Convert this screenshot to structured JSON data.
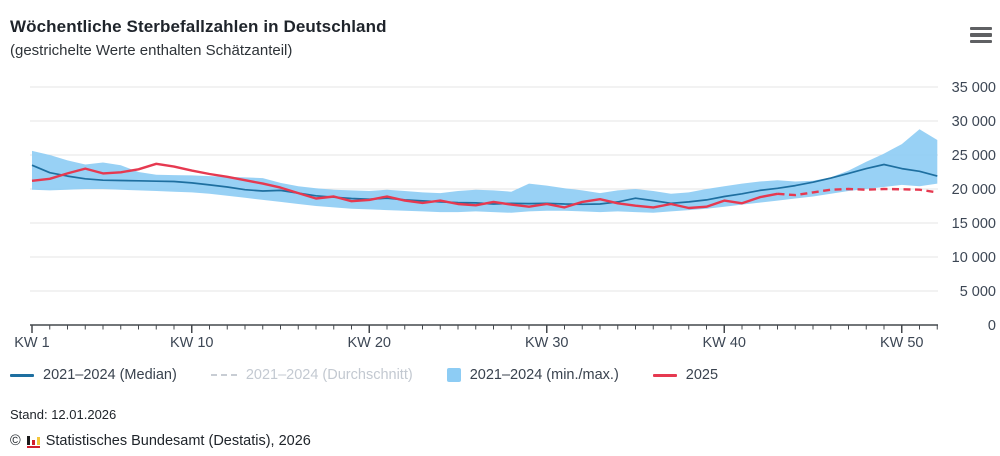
{
  "header": {
    "title": "Wöchentliche Sterbefallzahlen in Deutschland",
    "subtitle": "(gestrichelte Werte enthalten Schätzanteil)",
    "menu_icon": "hamburger-icon"
  },
  "chart_data": {
    "type": "line",
    "title": "Wöchentliche Sterbefallzahlen in Deutschland",
    "subtitle": "(gestrichelte Werte enthalten Schätzanteil)",
    "x_unit": "Kalenderwoche",
    "week_count": 52,
    "x_major_ticks": [
      {
        "week": 1,
        "label": "KW 1"
      },
      {
        "week": 10,
        "label": "KW 10"
      },
      {
        "week": 20,
        "label": "KW 20"
      },
      {
        "week": 30,
        "label": "KW 30"
      },
      {
        "week": 40,
        "label": "KW 40"
      },
      {
        "week": 50,
        "label": "KW 50"
      }
    ],
    "ylim": [
      0,
      35000
    ],
    "y_ticks": [
      0,
      5000,
      10000,
      15000,
      20000,
      25000,
      30000,
      35000
    ],
    "y_tick_labels": [
      "0",
      "5 000",
      "10 000",
      "15 000",
      "20 000",
      "25 000",
      "30 000",
      "35 000"
    ],
    "grid": true,
    "legend_position": "bottom",
    "colors": {
      "median": "#1e6fa0",
      "average_disabled": "#c8cdd4",
      "band": "#8dccf4",
      "y2025": "#e63950",
      "axis": "#44484d",
      "gridline": "#e4e4e4"
    },
    "series": [
      {
        "name": "2021–2024 (Median)",
        "type": "line",
        "color": "#1e6fa0",
        "values": [
          23500,
          22400,
          21900,
          21500,
          21300,
          21250,
          21200,
          21150,
          21100,
          20900,
          20600,
          20300,
          19900,
          19700,
          19800,
          19400,
          19000,
          18800,
          18600,
          18500,
          18650,
          18400,
          18250,
          18100,
          18000,
          17950,
          17800,
          17900,
          17850,
          17900,
          17800,
          17750,
          17800,
          18100,
          18650,
          18300,
          17900,
          18100,
          18400,
          18900,
          19300,
          19800,
          20100,
          20500,
          21000,
          21600,
          22300,
          23000,
          23600,
          23000,
          22600,
          21900
        ]
      },
      {
        "name": "2021–2024 (Durchschnitt)",
        "type": "line",
        "style": "dashed",
        "color": "#c8cdd4",
        "visible": false,
        "values": null
      },
      {
        "name": "2021–2024 (min./max.)",
        "type": "band",
        "color": "#8dccf4",
        "max": [
          25600,
          25000,
          24200,
          23600,
          23900,
          23500,
          22500,
          22100,
          22050,
          22000,
          21900,
          21800,
          21700,
          21600,
          20900,
          20400,
          20100,
          19900,
          19800,
          19700,
          19900,
          19700,
          19500,
          19400,
          19700,
          19900,
          19800,
          19600,
          20800,
          20500,
          20100,
          19800,
          19400,
          19800,
          20000,
          19700,
          19300,
          19500,
          20000,
          20400,
          20800,
          21100,
          21300,
          21100,
          21200,
          21700,
          22700,
          24000,
          25200,
          26600,
          28800,
          27200
        ],
        "min": [
          19900,
          19800,
          19900,
          20000,
          20000,
          19900,
          19800,
          19700,
          19600,
          19500,
          19300,
          19000,
          18700,
          18400,
          18100,
          17800,
          17500,
          17300,
          17100,
          17000,
          16900,
          16800,
          16700,
          16600,
          16600,
          16700,
          16600,
          16500,
          16700,
          16800,
          16800,
          16700,
          16600,
          16700,
          16600,
          16500,
          16700,
          16900,
          17100,
          17400,
          17700,
          18000,
          18300,
          18600,
          18900,
          19300,
          19700,
          20000,
          20300,
          20600,
          20400,
          20800
        ]
      },
      {
        "name": "2025",
        "type": "line",
        "color": "#e63950",
        "dashed_from_week": 43,
        "values": [
          21200,
          21500,
          22300,
          23000,
          22300,
          22450,
          22900,
          23700,
          23300,
          22700,
          22200,
          21800,
          21300,
          20800,
          20200,
          19400,
          18600,
          18900,
          18200,
          18400,
          18900,
          18300,
          17950,
          18300,
          17800,
          17600,
          18100,
          17700,
          17400,
          17800,
          17300,
          18100,
          18500,
          17900,
          17550,
          17300,
          17800,
          17200,
          17400,
          18300,
          17900,
          18800,
          19300,
          19100,
          19500,
          19900,
          20000,
          19900,
          20000,
          19950,
          19900,
          19500
        ]
      }
    ]
  },
  "legend": {
    "items": [
      {
        "label": "2021–2024 (Median)",
        "marker": "line",
        "color": "#1e6fa0",
        "disabled": false
      },
      {
        "label": "2021–2024 (Durchschnitt)",
        "marker": "dashed-line",
        "color": "#c8cdd4",
        "disabled": true
      },
      {
        "label": "2021–2024 (min./max.)",
        "marker": "square",
        "color": "#8dccf4",
        "disabled": false
      },
      {
        "label": "2025",
        "marker": "line",
        "color": "#e63950",
        "disabled": false
      }
    ]
  },
  "footer": {
    "stand": "Stand: 12.01.2026",
    "copyright_symbol": "©",
    "source": "Statistisches Bundesamt (Destatis), 2026",
    "logo_icon": "destatis-bars-icon"
  }
}
